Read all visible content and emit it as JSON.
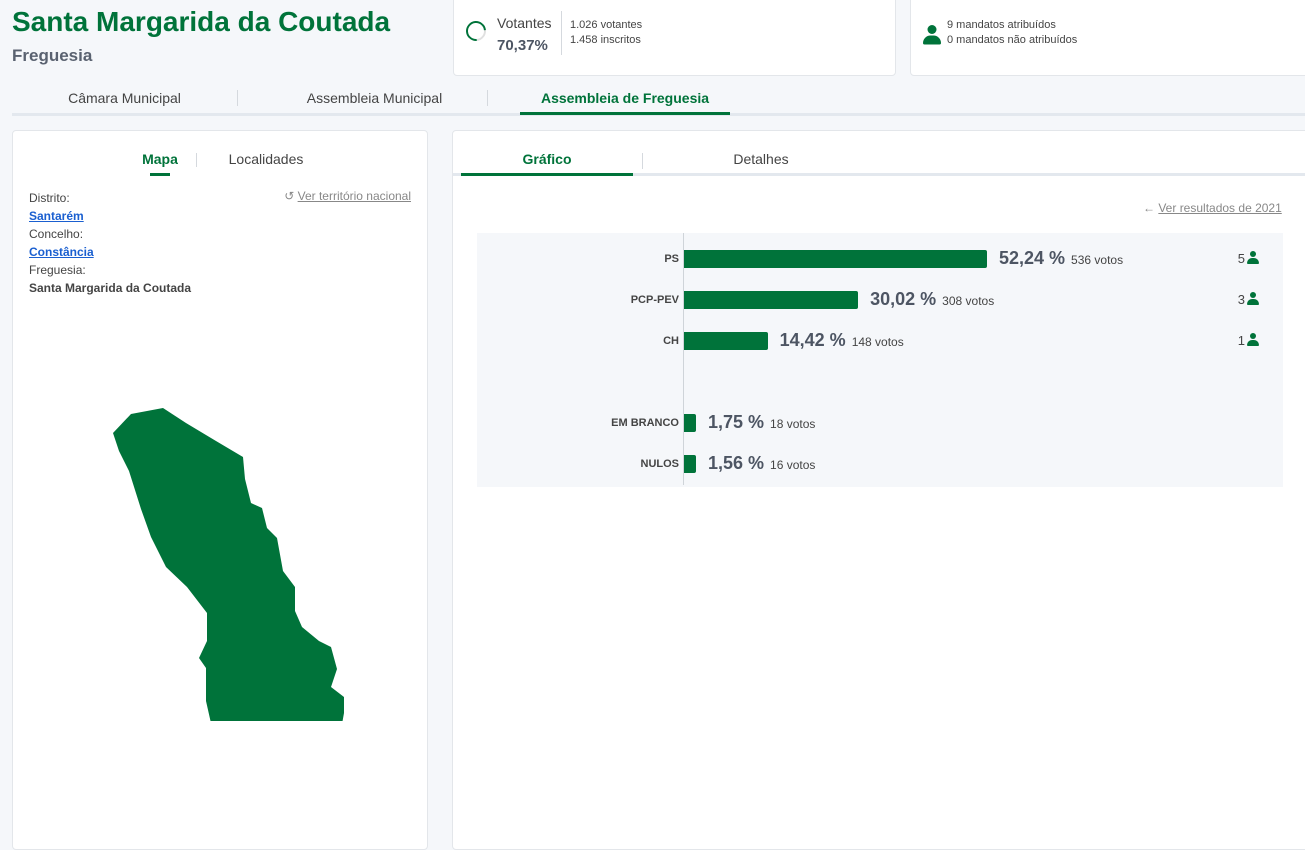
{
  "header": {
    "title": "Santa Margarida da Coutada",
    "subtitle": "Freguesia"
  },
  "turnout": {
    "label": "Votantes",
    "percent": "70,37%",
    "voters": "1.026 votantes",
    "registered": "1.458 inscritos",
    "fraction": 0.7037
  },
  "mandates": {
    "assigned": "9 mandatos atribuídos",
    "unassigned": "0 mandatos não atribuídos"
  },
  "top_tabs": [
    {
      "label": "Câmara Municipal"
    },
    {
      "label": "Assembleia Municipal"
    },
    {
      "label": "Assembleia de Freguesia",
      "active": true
    }
  ],
  "left_panel": {
    "tabs": [
      {
        "label": "Mapa",
        "active": true
      },
      {
        "label": "Localidades"
      }
    ],
    "national_link": "Ver território nacional",
    "district_label": "Distrito:",
    "district": "Santarém",
    "council_label": "Concelho:",
    "council": "Constância",
    "parish_label": "Freguesia:",
    "parish": "Santa Margarida da Coutada"
  },
  "right_panel": {
    "tabs": [
      {
        "label": "Gráfico",
        "active": true
      },
      {
        "label": "Detalhes"
      }
    ],
    "prev_results_link": "Ver resultados de 2021"
  },
  "chart_data": {
    "type": "bar",
    "orientation": "horizontal",
    "categories": [
      "PS",
      "PCP-PEV",
      "CH",
      "EM BRANCO",
      "NULOS"
    ],
    "values": [
      52.24,
      30.02,
      14.42,
      1.75,
      1.56
    ],
    "percent_labels": [
      "52,24 %",
      "30,02 %",
      "14,42 %",
      "1,75 %",
      "1,56 %"
    ],
    "votes_labels": [
      "536 votos",
      "308 votos",
      "148 votos",
      "18 votos",
      "16 votos"
    ],
    "seats": [
      "5",
      "3",
      "1",
      null,
      null
    ],
    "xlim": [
      0,
      100
    ]
  },
  "colors": {
    "accent": "#00733a"
  }
}
